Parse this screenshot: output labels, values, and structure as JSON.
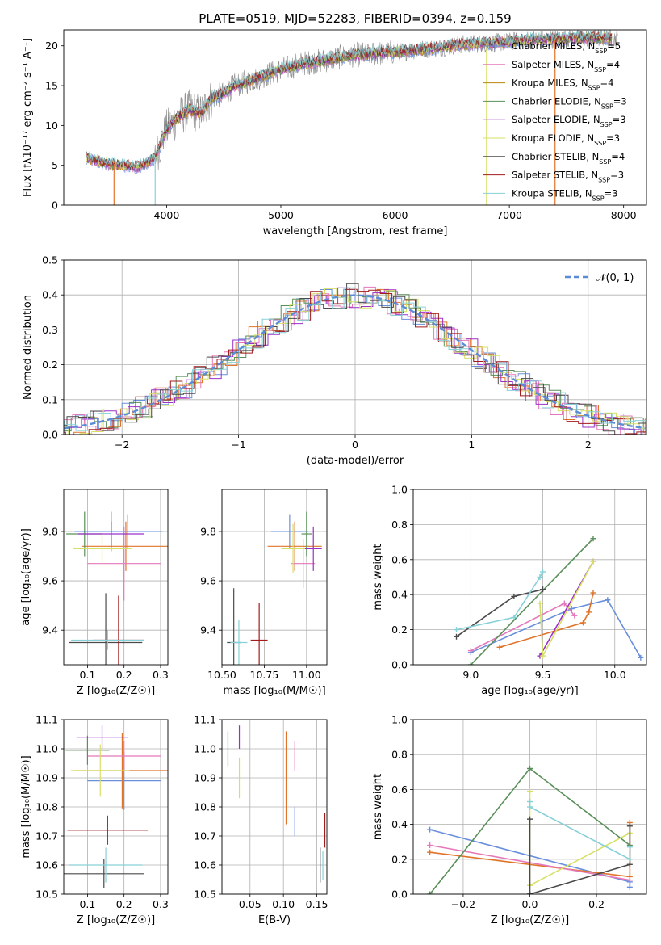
{
  "figure": {
    "title": "PLATE=0519, MJD=52283, FIBERID=0394, z=0.159"
  },
  "colors": [
    "#6a8fdc",
    "#e0742a",
    "#e578bb",
    "#5a8f5a",
    "#9b30c9",
    "#d6e066",
    "#4a4a4a",
    "#a31c1c",
    "#86d1d8",
    "#8a8a8a"
  ],
  "chart_data": [
    {
      "id": "spectrum",
      "type": "line",
      "xlabel": "wavelength [Angstrom, rest frame]",
      "ylabel": "Flux [fλ10⁻¹⁷ erg cm⁻² s⁻¹ A⁻¹]",
      "xlim": [
        3100,
        8200
      ],
      "ylim": [
        0,
        22
      ],
      "xticks": [
        4000,
        5000,
        6000,
        7000,
        8000
      ],
      "yticks": [
        0,
        5,
        10,
        15,
        20
      ],
      "legend_position": "top-right",
      "series": [
        {
          "name": "Chabrier MILES, N_SSP=5",
          "color": "#6a8fdc"
        },
        {
          "name": "Salpeter MILES, N_SSP=4",
          "color": "#e578bb"
        },
        {
          "name": "Kroupa MILES, N_SSP=4",
          "color": "#b8860b"
        },
        {
          "name": "Chabrier ELODIE, N_SSP=3",
          "color": "#5a8f5a"
        },
        {
          "name": "Salpeter ELODIE, N_SSP=3",
          "color": "#9b30c9"
        },
        {
          "name": "Kroupa ELODIE, N_SSP=3",
          "color": "#d6e066"
        },
        {
          "name": "Chabrier STELIB, N_SSP=4",
          "color": "#4a4a4a"
        },
        {
          "name": "Salpeter STELIB, N_SSP=3",
          "color": "#a31c1c"
        },
        {
          "name": "Kroupa STELIB, N_SSP=3",
          "color": "#86d1d8"
        }
      ],
      "continuum": {
        "x": [
          3300,
          3450,
          3600,
          3750,
          3900,
          4000,
          4100,
          4200,
          4300,
          4400,
          4500,
          4600,
          4800,
          5000,
          5200,
          5400,
          5600,
          5800,
          6000,
          6200,
          6400,
          6600,
          6800,
          7000,
          7200,
          7400,
          7600,
          7800,
          7900
        ],
        "y": [
          6.0,
          5.3,
          5.0,
          4.8,
          6.0,
          9.5,
          11.0,
          12.0,
          11.5,
          13.5,
          14.0,
          15.0,
          16.0,
          17.0,
          17.8,
          18.2,
          18.8,
          19.0,
          19.2,
          19.5,
          19.8,
          20.2,
          20.3,
          20.5,
          20.8,
          20.8,
          21.0,
          21.0,
          20.9
        ]
      }
    },
    {
      "id": "residuals",
      "type": "line",
      "xlabel": "(data-model)/error",
      "ylabel": "Normed distribution",
      "xlim": [
        -2.5,
        2.5
      ],
      "ylim": [
        0,
        0.5
      ],
      "xticks": [
        -2,
        -1,
        0,
        1,
        2
      ],
      "yticks": [
        0.0,
        0.1,
        0.2,
        0.3,
        0.4,
        0.5
      ],
      "grid": true,
      "legend_position": "top-right",
      "legend": "𝒩(0, 1)",
      "gaussian_color": "#5b8bd6"
    },
    {
      "id": "age_vs_Z",
      "type": "scatter",
      "xlabel": "Z [log₁₀(Z/Z☉)]",
      "ylabel": "age [log₁₀(age/yr)]",
      "xlim": [
        0.035,
        0.32
      ],
      "ylim": [
        9.26,
        9.97
      ],
      "xticks": [
        0.1,
        0.2,
        0.3
      ],
      "yticks": [
        9.4,
        9.6,
        9.8
      ],
      "grid": true,
      "points": [
        {
          "x": 0.21,
          "y": 9.8,
          "xe": 0.095,
          "ye": 0.07,
          "c": "#6a8fdc"
        },
        {
          "x": 0.165,
          "y": 9.8,
          "xe": 0.1,
          "ye": 0.08,
          "c": "#6a8fdc"
        },
        {
          "x": 0.205,
          "y": 9.74,
          "xe": 0.12,
          "ye": 0.1,
          "c": "#e0742a"
        },
        {
          "x": 0.2,
          "y": 9.67,
          "xe": 0.1,
          "ye": 0.15,
          "c": "#e578bb"
        },
        {
          "x": 0.092,
          "y": 9.79,
          "xe": 0.05,
          "ye": 0.09,
          "c": "#5a8f5a"
        },
        {
          "x": 0.165,
          "y": 9.79,
          "xe": 0.09,
          "ye": 0.05,
          "c": "#9b30c9"
        },
        {
          "x": 0.14,
          "y": 9.73,
          "xe": 0.08,
          "ye": 0.06,
          "c": "#d6e066"
        },
        {
          "x": 0.15,
          "y": 9.35,
          "xe": 0.1,
          "ye": 0.2,
          "c": "#4a4a4a"
        },
        {
          "x": 0.185,
          "y": 9.36,
          "xe": 0.07,
          "ye": 0.18,
          "c": "#a31c1c"
        },
        {
          "x": 0.155,
          "y": 9.36,
          "xe": 0.1,
          "ye": 0.04,
          "c": "#86d1d8"
        }
      ]
    },
    {
      "id": "age_vs_mass",
      "type": "scatter",
      "xlabel": "mass [log₁₀(M/M☉)]",
      "ylabel": "",
      "xlim": [
        10.5,
        11.12
      ],
      "ylim": [
        9.26,
        9.97
      ],
      "xticks": [
        10.5,
        10.75,
        11.0
      ],
      "yticks": [
        9.4,
        9.6,
        9.8
      ],
      "grid": true,
      "points": [
        {
          "x": 10.9,
          "y": 9.8,
          "xe": 0.11,
          "ye": 0.07,
          "c": "#6a8fdc"
        },
        {
          "x": 10.93,
          "y": 9.74,
          "xe": 0.16,
          "ye": 0.1,
          "c": "#e0742a"
        },
        {
          "x": 10.98,
          "y": 9.67,
          "xe": 0.07,
          "ye": 0.1,
          "c": "#e578bb"
        },
        {
          "x": 11.0,
          "y": 9.79,
          "xe": 0.03,
          "ye": 0.09,
          "c": "#5a8f5a"
        },
        {
          "x": 11.04,
          "y": 9.73,
          "xe": 0.05,
          "ye": 0.09,
          "c": "#9b30c9"
        },
        {
          "x": 10.92,
          "y": 9.73,
          "xe": 0.07,
          "ye": 0.1,
          "c": "#d6e066"
        },
        {
          "x": 10.57,
          "y": 9.35,
          "xe": 0.04,
          "ye": 0.22,
          "c": "#4a4a4a"
        },
        {
          "x": 10.72,
          "y": 9.36,
          "xe": 0.05,
          "ye": 0.15,
          "c": "#a31c1c"
        },
        {
          "x": 10.6,
          "y": 9.35,
          "xe": 0.05,
          "ye": 0.09,
          "c": "#86d1d8"
        }
      ]
    },
    {
      "id": "mass_weight_vs_age",
      "type": "line",
      "xlabel": "age [log₁₀(age/yr)]",
      "ylabel": "mass weight",
      "xlim": [
        8.6,
        10.22
      ],
      "ylim": [
        0,
        1
      ],
      "xticks": [
        9.0,
        9.5,
        10.0
      ],
      "yticks": [
        0.0,
        0.2,
        0.4,
        0.6,
        0.8,
        1.0
      ],
      "grid": true,
      "series": [
        {
          "c": "#6a8fdc",
          "x": [
            9.0,
            9.7,
            9.95,
            10.18
          ],
          "y": [
            0.07,
            0.32,
            0.37,
            0.04
          ]
        },
        {
          "c": "#e0742a",
          "x": [
            9.2,
            9.78,
            9.82,
            9.85
          ],
          "y": [
            0.1,
            0.24,
            0.3,
            0.41
          ]
        },
        {
          "c": "#e578bb",
          "x": [
            9.0,
            9.65,
            9.72
          ],
          "y": [
            0.08,
            0.35,
            0.28
          ]
        },
        {
          "c": "#5a8f5a",
          "x": [
            9.0,
            9.85
          ],
          "y": [
            0.0,
            0.72
          ]
        },
        {
          "c": "#9b30c9",
          "x": [
            9.48,
            9.85
          ],
          "y": [
            0.05,
            0.59
          ]
        },
        {
          "c": "#d6e066",
          "x": [
            9.48,
            9.5,
            9.85
          ],
          "y": [
            0.35,
            0.05,
            0.59
          ]
        },
        {
          "c": "#4a4a4a",
          "x": [
            8.9,
            9.3,
            9.5
          ],
          "y": [
            0.16,
            0.39,
            0.43
          ]
        },
        {
          "c": "#86d1d8",
          "x": [
            8.9,
            9.3,
            9.48,
            9.5
          ],
          "y": [
            0.2,
            0.27,
            0.5,
            0.53
          ]
        }
      ]
    },
    {
      "id": "mass_vs_Z",
      "type": "scatter",
      "xlabel": "Z [log₁₀(Z/Z☉)]",
      "ylabel": "mass [log₁₀(M/M☉)]",
      "xlim": [
        0.035,
        0.32
      ],
      "ylim": [
        10.5,
        11.1
      ],
      "xticks": [
        0.1,
        0.2,
        0.3
      ],
      "yticks": [
        10.5,
        10.6,
        10.7,
        10.8,
        10.9,
        11.0,
        11.1
      ],
      "grid": true,
      "points": [
        {
          "x": 0.2,
          "y": 10.89,
          "xe": 0.1,
          "ye": 0.1,
          "c": "#6a8fdc"
        },
        {
          "x": 0.195,
          "y": 10.925,
          "xe": 0.13,
          "ye": 0.13,
          "c": "#e0742a"
        },
        {
          "x": 0.2,
          "y": 10.975,
          "xe": 0.1,
          "ye": 0.05,
          "c": "#e578bb"
        },
        {
          "x": 0.1,
          "y": 10.995,
          "xe": 0.06,
          "ye": 0.05,
          "c": "#5a8f5a"
        },
        {
          "x": 0.14,
          "y": 11.04,
          "xe": 0.07,
          "ye": 0.04,
          "c": "#9b30c9"
        },
        {
          "x": 0.135,
          "y": 10.925,
          "xe": 0.08,
          "ye": 0.09,
          "c": "#d6e066"
        },
        {
          "x": 0.145,
          "y": 10.57,
          "xe": 0.11,
          "ye": 0.05,
          "c": "#4a4a4a"
        },
        {
          "x": 0.155,
          "y": 10.72,
          "xe": 0.11,
          "ye": 0.05,
          "c": "#a31c1c"
        },
        {
          "x": 0.15,
          "y": 10.6,
          "xe": 0.1,
          "ye": 0.06,
          "c": "#86d1d8"
        }
      ]
    },
    {
      "id": "mass_vs_ebv",
      "type": "scatter",
      "xlabel": "E(B-V)",
      "ylabel": "",
      "xlim": [
        0.008,
        0.165
      ],
      "ylim": [
        10.5,
        11.1
      ],
      "xticks": [
        0.05,
        0.1,
        0.15
      ],
      "yticks": [
        10.5,
        10.6,
        10.7,
        10.8,
        10.9,
        11.0,
        11.1
      ],
      "grid": true,
      "points": [
        {
          "x": 0.017,
          "y": 11.0,
          "ye": 0.06,
          "c": "#5a8f5a"
        },
        {
          "x": 0.034,
          "y": 11.04,
          "ye": 0.04,
          "c": "#9b30c9"
        },
        {
          "x": 0.034,
          "y": 10.9,
          "ye": 0.07,
          "c": "#d6e066"
        },
        {
          "x": 0.104,
          "y": 10.9,
          "ye": 0.16,
          "c": "#e0742a"
        },
        {
          "x": 0.117,
          "y": 10.975,
          "ye": 0.05,
          "c": "#e578bb"
        },
        {
          "x": 0.117,
          "y": 10.75,
          "ye": 0.05,
          "c": "#6a8fdc"
        },
        {
          "x": 0.155,
          "y": 10.6,
          "ye": 0.06,
          "c": "#4a4a4a"
        },
        {
          "x": 0.162,
          "y": 10.72,
          "ye": 0.06,
          "c": "#a31c1c"
        },
        {
          "x": 0.159,
          "y": 10.6,
          "ye": 0.05,
          "c": "#86d1d8"
        }
      ]
    },
    {
      "id": "mass_weight_vs_Z",
      "type": "line",
      "xlabel": "Z [log₁₀(Z/Z☉)]",
      "ylabel": "mass weight",
      "xlim": [
        -0.35,
        0.35
      ],
      "ylim": [
        0,
        1
      ],
      "xticks": [
        -0.2,
        0.0,
        0.2
      ],
      "yticks": [
        0.0,
        0.2,
        0.4,
        0.6,
        0.8,
        1.0
      ],
      "grid": true,
      "series": [
        {
          "c": "#6a8fdc",
          "x": [
            -0.3,
            0.3,
            0.3
          ],
          "y": [
            0.37,
            0.07,
            0.04
          ]
        },
        {
          "c": "#e0742a",
          "x": [
            -0.3,
            0.3,
            0.3
          ],
          "y": [
            0.24,
            0.1,
            0.41
          ]
        },
        {
          "c": "#e578bb",
          "x": [
            -0.3,
            0.3
          ],
          "y": [
            0.28,
            0.08
          ]
        },
        {
          "c": "#5a8f5a",
          "x": [
            -0.3,
            0.0,
            0.3
          ],
          "y": [
            0.0,
            0.72,
            0.28
          ]
        },
        {
          "c": "#d6e066",
          "x": [
            0.0,
            0.0,
            0.3
          ],
          "y": [
            0.59,
            0.05,
            0.35
          ]
        },
        {
          "c": "#4a4a4a",
          "x": [
            0.0,
            0.0,
            0.0,
            0.3,
            0.3
          ],
          "y": [
            0.43,
            0.0,
            0.0,
            0.17,
            0.39
          ]
        },
        {
          "c": "#86d1d8",
          "x": [
            0.0,
            0.0,
            0.3,
            0.3
          ],
          "y": [
            0.53,
            0.5,
            0.2,
            0.27
          ]
        }
      ]
    }
  ]
}
